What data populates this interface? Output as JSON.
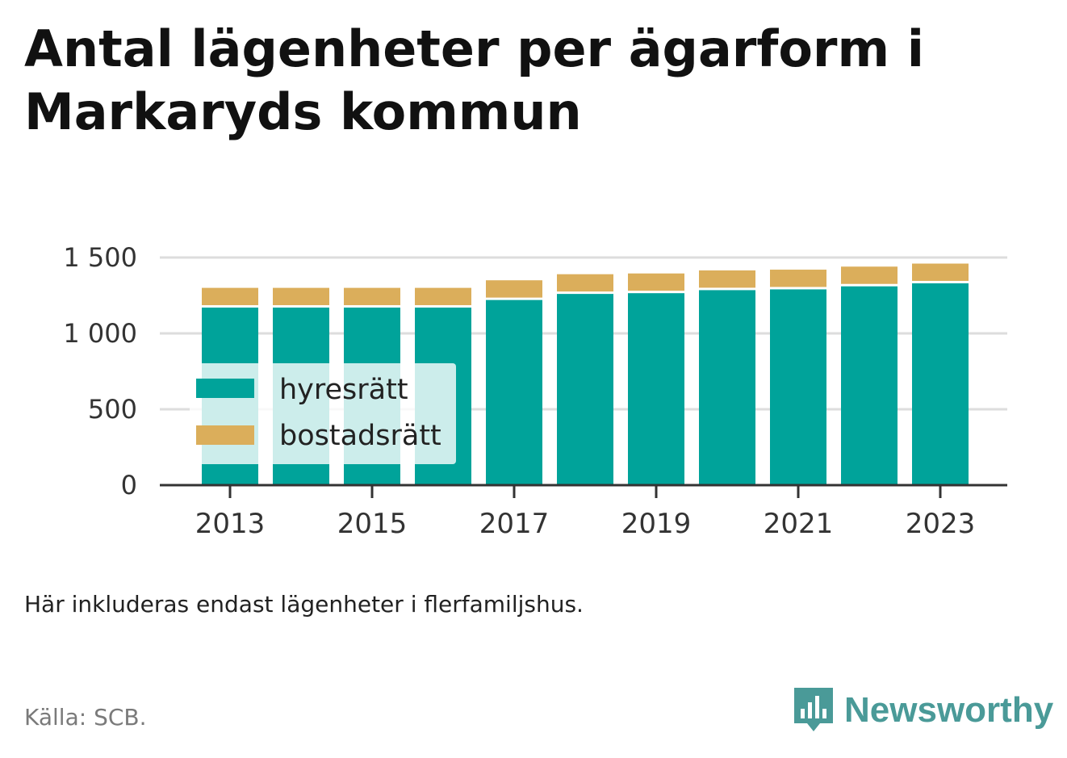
{
  "title": "Antal lägenheter per ägarform i Markaryds kommun",
  "note": "Här inkluderas endast lägenheter i flerfamiljshus.",
  "source": "Källa: SCB.",
  "brand": "Newsworthy",
  "colors": {
    "hyresratt": "#00a39a",
    "bostadsratt": "#dbae5b",
    "grid": "#dddddd",
    "axis": "#333333"
  },
  "chart_data": {
    "type": "bar",
    "stacked": true,
    "title": "Antal lägenheter per ägarform i Markaryds kommun",
    "categories": [
      "2013",
      "2014",
      "2015",
      "2016",
      "2017",
      "2018",
      "2019",
      "2020",
      "2021",
      "2022",
      "2023"
    ],
    "x_tick_labels": [
      "2013",
      "2015",
      "2017",
      "2019",
      "2021",
      "2023"
    ],
    "y_ticks": [
      0,
      500,
      1000,
      1500
    ],
    "y_tick_labels": [
      "0",
      "500",
      "1 000",
      "1 500"
    ],
    "ylim": [
      0,
      1500
    ],
    "grid": true,
    "legend_position": "left",
    "series": [
      {
        "name": "hyresrätt",
        "color": "#00a39a",
        "values": [
          1170,
          1170,
          1170,
          1170,
          1220,
          1260,
          1265,
          1285,
          1290,
          1310,
          1330
        ]
      },
      {
        "name": "bostadsrätt",
        "color": "#dbae5b",
        "values": [
          130,
          130,
          130,
          130,
          130,
          130,
          130,
          130,
          130,
          130,
          130
        ]
      }
    ]
  }
}
